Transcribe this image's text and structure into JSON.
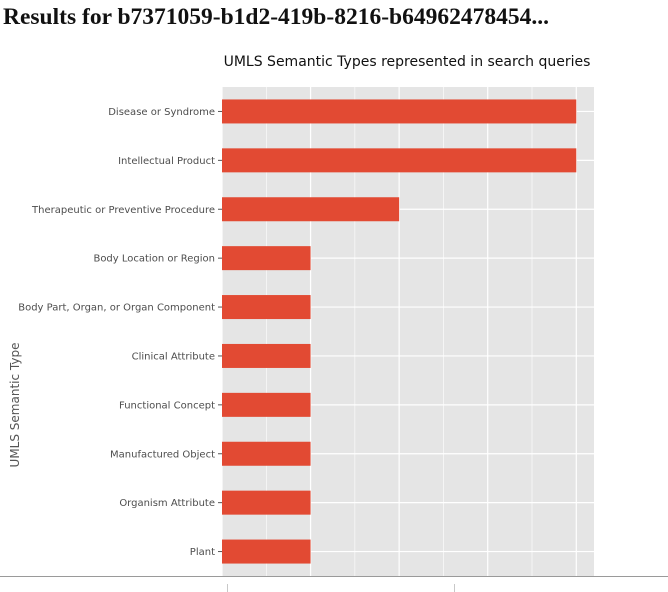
{
  "page": {
    "title": "Results for b7371059-b1d2-419b-8216-b64962478454..."
  },
  "colors": {
    "bar": "#e24a33",
    "panel": "#e5e5e5",
    "grid": "#ffffff"
  },
  "chart_data": {
    "type": "bar",
    "orientation": "horizontal",
    "title": "UMLS Semantic Types represented in search queries",
    "xlabel": "",
    "ylabel": "UMLS Semantic Type",
    "categories": [
      "Disease or Syndrome",
      "Intellectual Product",
      "Therapeutic or Preventive Procedure",
      "Body Location or Region",
      "Body Part, Organ, or Organ Component",
      "Clinical Attribute",
      "Functional Concept",
      "Manufactured Object",
      "Organism Attribute",
      "Plant"
    ],
    "values": [
      8,
      8,
      4,
      2,
      2,
      2,
      2,
      2,
      2,
      2
    ],
    "xlim": [
      0,
      8.4
    ],
    "grid": true,
    "legend": "none"
  }
}
